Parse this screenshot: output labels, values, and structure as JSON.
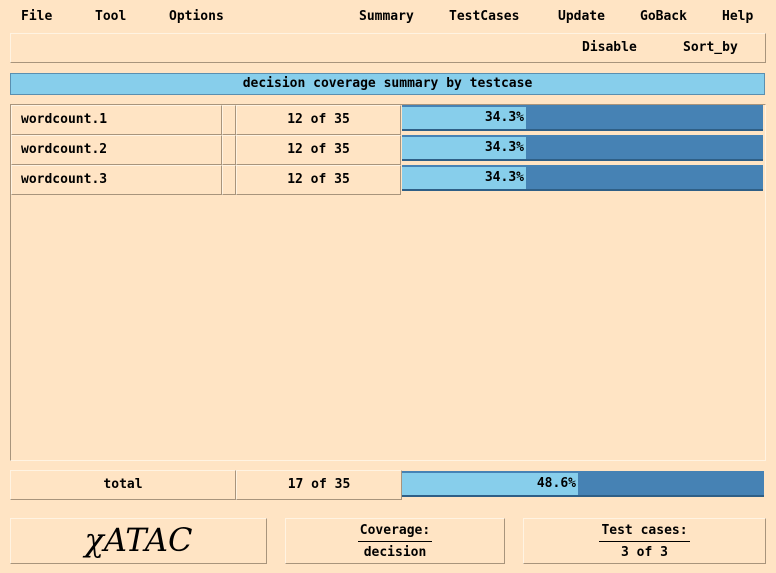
{
  "menu": {
    "file": "File",
    "tool": "Tool",
    "options": "Options",
    "summary": "Summary",
    "testcases": "TestCases",
    "update": "Update",
    "goback": "GoBack",
    "help": "Help"
  },
  "toolbar": {
    "disable": "Disable",
    "sort_by": "Sort_by"
  },
  "title": "decision coverage summary by testcase",
  "rows": [
    {
      "name": "wordcount.1",
      "count": "12 of 35",
      "percent_label": "34.3%",
      "percent": 34.3
    },
    {
      "name": "wordcount.2",
      "count": "12 of 35",
      "percent_label": "34.3%",
      "percent": 34.3
    },
    {
      "name": "wordcount.3",
      "count": "12 of 35",
      "percent_label": "34.3%",
      "percent": 34.3
    }
  ],
  "total": {
    "name": "total",
    "count": "17 of 35",
    "percent_label": "48.6%",
    "percent": 48.6
  },
  "footer": {
    "logo": "χATAC",
    "coverage_label": "Coverage:",
    "coverage_value": "decision",
    "testcases_label": "Test cases:",
    "testcases_value": "3 of 3"
  },
  "colors": {
    "background": "#ffe4c4",
    "bar_light": "#87ceeb",
    "bar_dark": "#4682b4"
  }
}
